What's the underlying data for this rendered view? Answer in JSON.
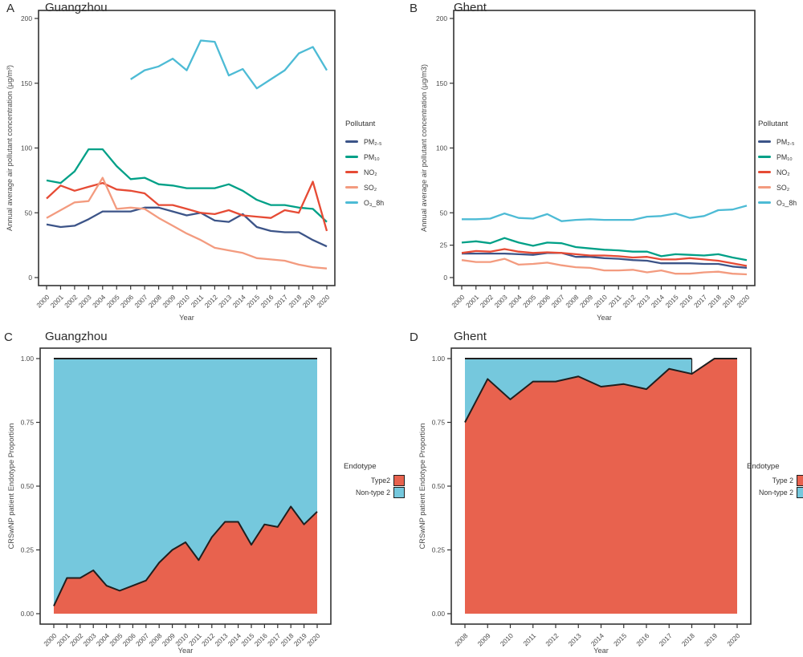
{
  "chart_data": [
    {
      "letter": "A",
      "title": "Guangzhou",
      "type": "line",
      "xlabel": "Year",
      "ylabel": "Annual average air pollutant concentration (μg/m³)",
      "x": [
        2000,
        2001,
        2002,
        2003,
        2004,
        2005,
        2006,
        2007,
        2008,
        2009,
        2010,
        2011,
        2012,
        2013,
        2014,
        2015,
        2016,
        2017,
        2018,
        2019,
        2020
      ],
      "ylim": [
        0,
        200
      ],
      "ytick_values": [
        0,
        50,
        100,
        150,
        200
      ],
      "ytick_labels": [
        "0",
        "50",
        "100",
        "150",
        "200"
      ],
      "legend": {
        "title": "Pollutant",
        "items": [
          {
            "label": "PM₂.₅",
            "color": "#3C5488"
          },
          {
            "label": "PM₁₀",
            "color": "#00A087"
          },
          {
            "label": "NO₂",
            "color": "#E64B35"
          },
          {
            "label": "SO₂",
            "color": "#F39B7F"
          },
          {
            "label": "O₃_8h",
            "color": "#4DBBD5"
          }
        ]
      },
      "series": [
        {
          "name": "PM2.5",
          "label": "PM₂.₅",
          "color": "#3C5488",
          "values": [
            41,
            39,
            40,
            45,
            51,
            51,
            51,
            54,
            54,
            51,
            48,
            50,
            44,
            43,
            49,
            39,
            36,
            35,
            35,
            29,
            24
          ]
        },
        {
          "name": "PM10",
          "label": "PM₁₀",
          "color": "#00A087",
          "values": [
            75,
            73,
            82,
            99,
            99,
            86,
            76,
            77,
            72,
            71,
            69,
            69,
            69,
            72,
            67,
            60,
            56,
            56,
            54,
            53,
            43
          ]
        },
        {
          "name": "NO2",
          "label": "NO₂",
          "color": "#E64B35",
          "values": [
            61,
            71,
            67,
            70,
            73,
            68,
            67,
            65,
            56,
            56,
            53,
            50,
            49,
            52,
            48,
            47,
            46,
            52,
            50,
            74,
            36
          ]
        },
        {
          "name": "SO2",
          "label": "SO₂",
          "color": "#F39B7F",
          "values": [
            46,
            52,
            58,
            59,
            77,
            53,
            54,
            53,
            46,
            40,
            34,
            29,
            23,
            21,
            19,
            15,
            14,
            13,
            10,
            8,
            7
          ]
        },
        {
          "name": "O3_8h",
          "label": "O₃_8h",
          "color": "#4DBBD5",
          "values": [
            null,
            null,
            null,
            null,
            null,
            null,
            153,
            160,
            163,
            169,
            160,
            183,
            182,
            156,
            161,
            146,
            153,
            160,
            173,
            178,
            160
          ]
        }
      ]
    },
    {
      "letter": "B",
      "title": "Ghent",
      "type": "line",
      "xlabel": "Year",
      "ylabel": "Annual average air pollutant concentration (μg/m3)",
      "x": [
        2000,
        2001,
        2002,
        2003,
        2004,
        2005,
        2006,
        2007,
        2008,
        2009,
        2010,
        2011,
        2012,
        2013,
        2014,
        2015,
        2016,
        2017,
        2018,
        2019,
        2020
      ],
      "ylim": [
        0,
        200
      ],
      "ytick_values": [
        0,
        25,
        50,
        100,
        150,
        200
      ],
      "ytick_labels": [
        "0",
        "25",
        "50",
        "100",
        "150",
        "200"
      ],
      "legend": {
        "title": "Pollutant",
        "items": [
          {
            "label": "PM₂.₅",
            "color": "#3C5488"
          },
          {
            "label": "PM₁₀",
            "color": "#00A087"
          },
          {
            "label": "NO₂",
            "color": "#E64B35"
          },
          {
            "label": "SO₂",
            "color": "#F39B7F"
          },
          {
            "label": "O₃_8h",
            "color": "#4DBBD5"
          }
        ]
      },
      "series": [
        {
          "name": "PM2.5",
          "label": "PM₂.₅",
          "color": "#3C5488",
          "values": [
            18.5,
            18.5,
            18.5,
            18.5,
            18,
            17.5,
            19,
            19,
            16,
            16,
            15,
            14.5,
            13.5,
            13,
            11,
            11,
            11,
            10.5,
            10.5,
            8.5,
            7.5
          ]
        },
        {
          "name": "PM10",
          "label": "PM₁₀",
          "color": "#00A087",
          "values": [
            27,
            28,
            26.5,
            30.5,
            27,
            24.5,
            27,
            26.5,
            23.5,
            22.5,
            21.5,
            21,
            20,
            20,
            16.5,
            18,
            17.5,
            17,
            18,
            15.5,
            13.5
          ]
        },
        {
          "name": "NO2",
          "label": "NO₂",
          "color": "#E64B35",
          "values": [
            19,
            20.5,
            20,
            22,
            20,
            19,
            19.5,
            19,
            18,
            17,
            17,
            16.5,
            15.5,
            16,
            14,
            14,
            15,
            14,
            13,
            11,
            9
          ]
        },
        {
          "name": "SO2",
          "label": "SO₂",
          "color": "#F39B7F",
          "values": [
            13.5,
            12,
            12,
            14.5,
            10,
            10.5,
            11.5,
            9.5,
            8,
            7.5,
            5.5,
            5.5,
            6,
            4,
            5.5,
            3,
            3,
            4,
            4.5,
            3,
            2.5
          ]
        },
        {
          "name": "O3_8h",
          "label": "O₃_8h",
          "color": "#4DBBD5",
          "values": [
            45,
            45,
            45.5,
            49.5,
            46,
            45.5,
            49,
            43.5,
            44.5,
            45,
            44.5,
            44.5,
            44.5,
            47,
            47.5,
            49.5,
            46,
            47.5,
            52,
            52.5,
            55.5
          ]
        }
      ]
    },
    {
      "letter": "C",
      "title": "Guangzhou",
      "type": "stacked_area",
      "xlabel": "Year",
      "ylabel": "CRSwNP patient Endotype Proportion",
      "x": [
        2000,
        2001,
        2002,
        2003,
        2004,
        2005,
        2006,
        2007,
        2008,
        2009,
        2010,
        2011,
        2012,
        2013,
        2014,
        2015,
        2016,
        2017,
        2018,
        2019,
        2020
      ],
      "ylim": [
        0,
        1
      ],
      "ytick_values": [
        0,
        0.25,
        0.5,
        0.75,
        1
      ],
      "ytick_labels": [
        "0.00",
        "0.25",
        "0.50",
        "0.75",
        "1.00"
      ],
      "legend": {
        "title": "Endotype",
        "items": [
          {
            "label": "Type2",
            "color": "#E8624E"
          },
          {
            "label": "Non-type 2",
            "color": "#75C8DD"
          }
        ]
      },
      "type2": {
        "name": "Type2",
        "color": "#E8624E",
        "values": [
          0.03,
          0.14,
          0.14,
          0.17,
          0.11,
          0.09,
          0.11,
          0.13,
          0.2,
          0.25,
          0.28,
          0.21,
          0.3,
          0.36,
          0.36,
          0.27,
          0.35,
          0.34,
          0.42,
          0.35,
          0.4
        ]
      },
      "non_type2": {
        "name": "Non-type 2",
        "color": "#75C8DD",
        "top_value": 1.0,
        "end_year": 2020
      },
      "boundary_color": "#1f1f1f"
    },
    {
      "letter": "D",
      "title": "Ghent",
      "type": "stacked_area",
      "xlabel": "Year",
      "ylabel": "CRSwNP patient Endotype Proportion",
      "x": [
        2008,
        2009,
        2010,
        2011,
        2012,
        2013,
        2014,
        2015,
        2016,
        2017,
        2018,
        2019,
        2020
      ],
      "ylim": [
        0,
        1
      ],
      "ytick_values": [
        0,
        0.25,
        0.5,
        0.75,
        1
      ],
      "ytick_labels": [
        "0.00",
        "0.25",
        "0.50",
        "0.75",
        "1.00"
      ],
      "legend": {
        "title": "Endotype",
        "items": [
          {
            "label": "Type 2",
            "color": "#E8624E"
          },
          {
            "label": "Non-type 2",
            "color": "#75C8DD"
          }
        ]
      },
      "type2": {
        "name": "Type 2",
        "color": "#E8624E",
        "values": [
          0.75,
          0.92,
          0.84,
          0.91,
          0.91,
          0.93,
          0.89,
          0.9,
          0.88,
          0.96,
          0.94,
          1.0,
          1.0
        ]
      },
      "non_type2": {
        "name": "Non-type 2",
        "color": "#75C8DD",
        "top_value": 1.0,
        "end_year": 2018
      },
      "boundary_color": "#1f1f1f"
    }
  ]
}
